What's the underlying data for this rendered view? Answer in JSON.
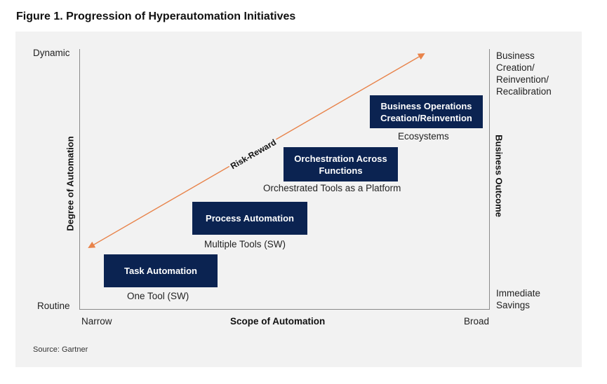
{
  "figure": {
    "title": "Figure 1. Progression of Hyperautomation Initiatives",
    "source": "Source: Gartner"
  },
  "axes": {
    "y_title": "Degree of Automation",
    "y_top": "Dynamic",
    "y_bottom": "Routine",
    "x_title": "Scope of Automation",
    "x_left": "Narrow",
    "x_right": "Broad",
    "right_title": "Business Outcome",
    "right_top": "Business Creation/ Reinvention/ Recalibration",
    "right_bottom": "Immediate Savings"
  },
  "arrow": {
    "label": "Risk-Reward",
    "color": "#e8834a"
  },
  "stages": [
    {
      "title": "Task Automation",
      "subtitle": "One Tool (SW)"
    },
    {
      "title": "Process Automation",
      "subtitle": "Multiple Tools (SW)"
    },
    {
      "title": "Orchestration Across Functions",
      "subtitle": "Orchestrated Tools as a Platform"
    },
    {
      "title": "Business Operations Creation/Reinvention",
      "subtitle": "Ecosystems"
    }
  ],
  "colors": {
    "box_fill": "#0b2351",
    "panel_bg": "#f2f2f2"
  }
}
